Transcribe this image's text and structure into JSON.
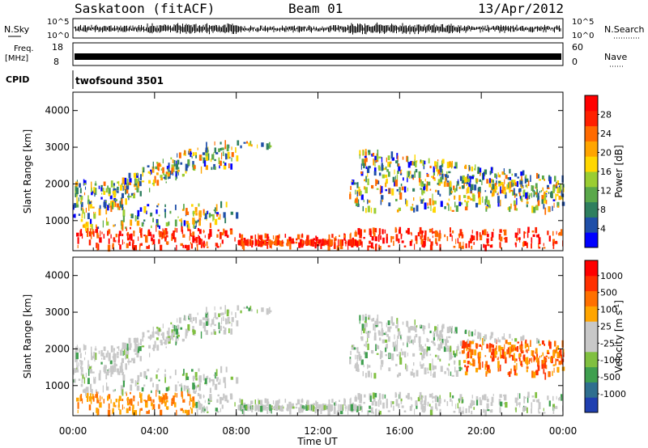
{
  "header": {
    "station": "Saskatoon (fitACF)",
    "beam": "Beam 01",
    "date": "13/Apr/2012"
  },
  "status_panels": {
    "nsky_label": "N.Sky",
    "nsky_ticks": [
      "10^5",
      "10^0"
    ],
    "nsearch_label": "N.Search",
    "nsearch_ticks": [
      "10^5",
      "10^0"
    ],
    "freq_label_1": "Freq.",
    "freq_label_2": "[MHz]",
    "freq_ticks": [
      "18",
      "8"
    ],
    "nave_label": "Nave",
    "nave_ticks": [
      "60",
      "0"
    ],
    "cpid_label": "CPID",
    "cpid_value": "twofsound 3501"
  },
  "colors": {
    "power": [
      "#0000ff",
      "#1f4fa8",
      "#2f7f5f",
      "#5aa84a",
      "#9acd32",
      "#ffd700",
      "#ffa500",
      "#ff6a00",
      "#ff2000",
      "#ff0000"
    ],
    "velocity": [
      "#1f3fb0",
      "#2f6f8f",
      "#3f9f4f",
      "#80c040",
      "#c8c8c8",
      "#c8c8c8",
      "#ffa500",
      "#ff7000",
      "#ff3000",
      "#ff0000"
    ]
  },
  "chart_data": [
    {
      "type": "heatmap",
      "title": "",
      "quantity": "Power",
      "ylabel": "Slant Range [km]",
      "ylim": [
        180,
        4500
      ],
      "yticks": [
        "4000",
        "3000",
        "2000",
        "1000"
      ],
      "xlabel": "",
      "xticks": [],
      "colorbar_label": "Power [dB]",
      "colorbar_ticks": [
        "28",
        "24",
        "20",
        "16",
        "12",
        "8",
        "4"
      ],
      "colorbar_range": [
        0,
        30
      ]
    },
    {
      "type": "heatmap",
      "title": "",
      "quantity": "Velocity",
      "ylabel": "Slant Range [km]",
      "ylim": [
        180,
        4500
      ],
      "yticks": [
        "4000",
        "3000",
        "2000",
        "1000"
      ],
      "xlabel": "Time UT",
      "xticks": [
        "00:00",
        "04:00",
        "08:00",
        "12:00",
        "16:00",
        "20:00",
        "00:00"
      ],
      "colorbar_label": "Velocity [m s",
      "colorbar_label_sup": "-1",
      "colorbar_label_end": "]",
      "colorbar_ticks": [
        "1000",
        "500",
        "100",
        "25",
        "-25",
        "-100",
        "-500",
        "-1000"
      ]
    }
  ]
}
